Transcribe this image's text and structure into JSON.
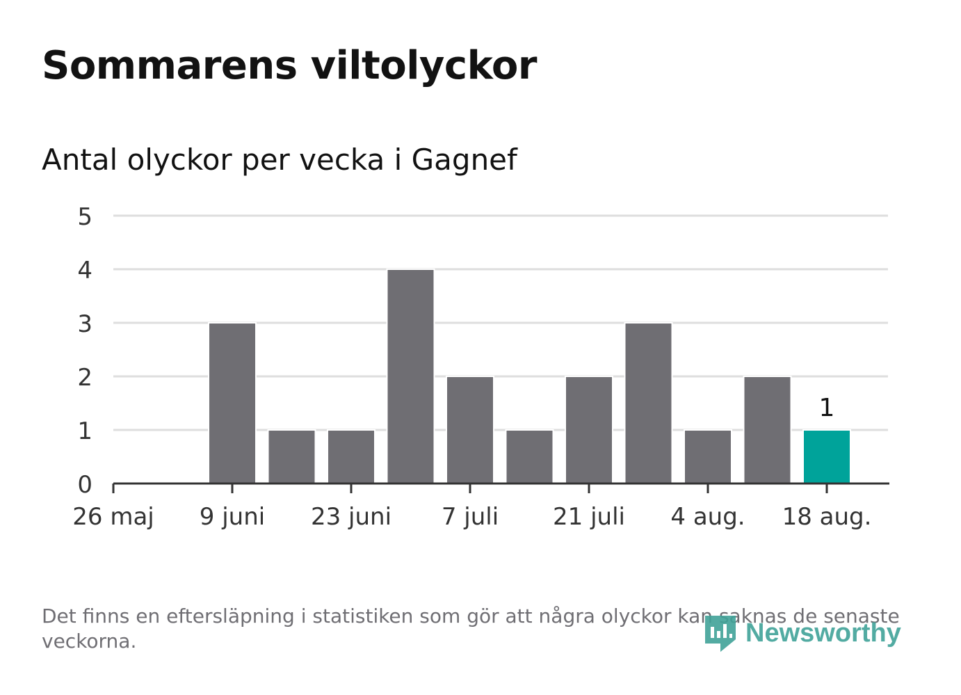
{
  "title": "Sommarens viltolyckor",
  "subtitle": "Antal olyckor per vecka i Gagnef",
  "footnote": "Det finns en eftersläpning i statistiken som gör att några olyckor kan saknas de senaste veckorna.",
  "logo": {
    "text": "Newsworthy",
    "icon": "newsworthy-logo-icon"
  },
  "colors": {
    "bar": "#6f6e73",
    "highlight": "#00a39a",
    "grid": "#dedede",
    "axis": "#333333",
    "text": "#121212",
    "note": "#6f6e73"
  },
  "chart_data": {
    "type": "bar",
    "title": "Sommarens viltolyckor",
    "subtitle": "Antal olyckor per vecka i Gagnef",
    "xlabel": "",
    "ylabel": "",
    "x": [
      "2024-05-26",
      "2024-06-02",
      "2024-06-09",
      "2024-06-16",
      "2024-06-23",
      "2024-06-30",
      "2024-07-07",
      "2024-07-14",
      "2024-07-21",
      "2024-07-28",
      "2024-08-04",
      "2024-08-11",
      "2024-08-18"
    ],
    "values": [
      0,
      0,
      3,
      1,
      1,
      4,
      2,
      1,
      2,
      3,
      1,
      2,
      1
    ],
    "highlight_index": 12,
    "data_labels": [
      {
        "index": 12,
        "text": "1"
      }
    ],
    "ylim": [
      0,
      5
    ],
    "yticks": [
      "0",
      "1",
      "2",
      "3",
      "4",
      "5"
    ],
    "xticks": [
      {
        "x": "2024-05-26",
        "label": "26 maj"
      },
      {
        "x": "2024-06-09",
        "label": "9 juni"
      },
      {
        "x": "2024-06-23",
        "label": "23 juni"
      },
      {
        "x": "2024-07-07",
        "label": "7 juli"
      },
      {
        "x": "2024-07-21",
        "label": "21 juli"
      },
      {
        "x": "2024-08-04",
        "label": "4 aug."
      },
      {
        "x": "2024-08-18",
        "label": "18 aug."
      }
    ],
    "grid": true,
    "legend": "none"
  }
}
